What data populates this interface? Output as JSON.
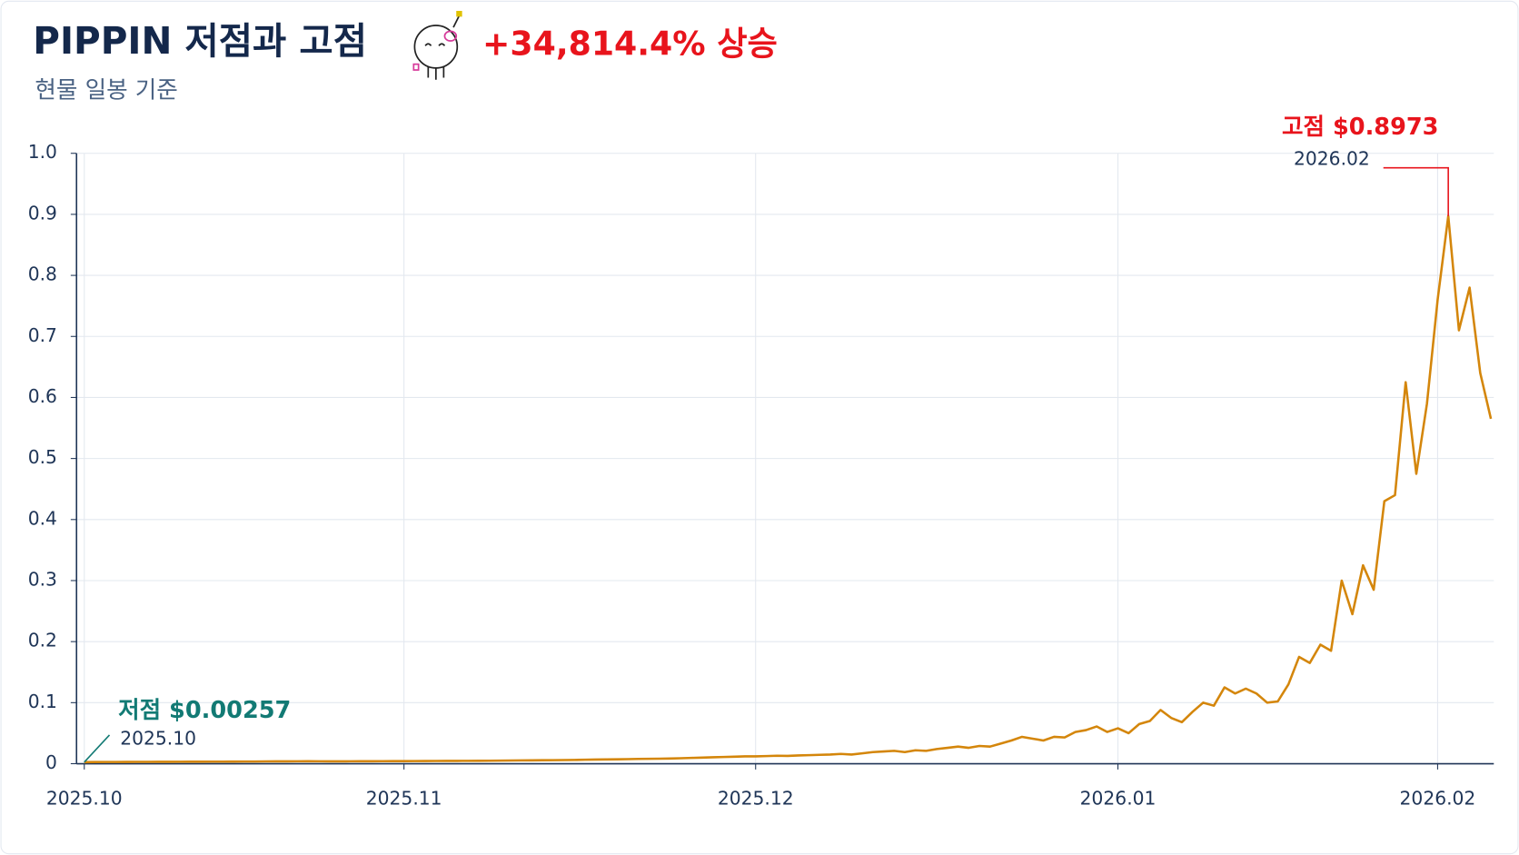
{
  "chart_data": {
    "type": "line",
    "title": "PIPPIN 저점과 고점",
    "headline": "+34,814.4% 상승",
    "subtitle": "현물 일봉 기준",
    "low_annotation": {
      "label": "저점 $0.00257",
      "date": "2025.10"
    },
    "high_annotation": {
      "label": "고점 $0.8973",
      "date": "2026.02"
    },
    "color": "#d4860b",
    "grid": true,
    "ylim": [
      0,
      1
    ],
    "yticks": [
      0,
      0.1,
      0.2,
      0.3,
      0.4,
      0.5,
      0.6,
      0.7,
      0.8,
      0.9,
      {
        "value": 1,
        "label": "1.0"
      }
    ],
    "categories": [
      "2025.10",
      null,
      null,
      null,
      null,
      null,
      null,
      null,
      null,
      null,
      null,
      null,
      null,
      null,
      null,
      null,
      null,
      null,
      null,
      null,
      null,
      null,
      null,
      null,
      null,
      null,
      null,
      null,
      null,
      null,
      "2025.11",
      null,
      null,
      null,
      null,
      null,
      null,
      null,
      null,
      null,
      null,
      null,
      null,
      null,
      null,
      null,
      null,
      null,
      null,
      null,
      null,
      null,
      null,
      null,
      null,
      null,
      null,
      null,
      null,
      null,
      null,
      null,
      null,
      "2025.12",
      null,
      null,
      null,
      null,
      null,
      null,
      null,
      null,
      null,
      null,
      null,
      null,
      null,
      null,
      null,
      null,
      null,
      null,
      null,
      null,
      null,
      null,
      null,
      null,
      null,
      null,
      null,
      null,
      null,
      null,
      null,
      null,
      null,
      "2026.01",
      null,
      null,
      null,
      null,
      null,
      null,
      null,
      null,
      null,
      null,
      null,
      null,
      null,
      null,
      null,
      null,
      null,
      null,
      null,
      null,
      null,
      null,
      null,
      null,
      null,
      null,
      null,
      null,
      null,
      "2026.02",
      null,
      null,
      null,
      null,
      null
    ],
    "values": [
      0.00257,
      0.0027,
      0.0028,
      0.0028,
      0.0029,
      0.003,
      0.003,
      0.0031,
      0.0031,
      0.0032,
      0.0033,
      0.0033,
      0.0034,
      0.0034,
      0.0035,
      0.0036,
      0.0036,
      0.0037,
      0.0038,
      0.0038,
      0.0039,
      0.004,
      0.0039,
      0.0038,
      0.0038,
      0.0039,
      0.004,
      0.004,
      0.0041,
      0.0042,
      0.0042,
      0.0043,
      0.0044,
      0.0045,
      0.0046,
      0.0046,
      0.0047,
      0.0048,
      0.0049,
      0.005,
      0.0052,
      0.0054,
      0.0055,
      0.0057,
      0.0058,
      0.006,
      0.0062,
      0.0065,
      0.0068,
      0.007,
      0.0072,
      0.0075,
      0.0078,
      0.008,
      0.0082,
      0.0085,
      0.009,
      0.0095,
      0.01,
      0.0105,
      0.011,
      0.0115,
      0.012,
      0.012,
      0.0125,
      0.013,
      0.0128,
      0.0135,
      0.014,
      0.0145,
      0.015,
      0.016,
      0.015,
      0.017,
      0.019,
      0.02,
      0.021,
      0.019,
      0.022,
      0.021,
      0.024,
      0.026,
      0.028,
      0.026,
      0.029,
      0.028,
      0.033,
      0.038,
      0.044,
      0.041,
      0.038,
      0.044,
      0.043,
      0.052,
      0.055,
      0.061,
      0.052,
      0.058,
      0.05,
      0.065,
      0.07,
      0.088,
      0.075,
      0.068,
      0.085,
      0.1,
      0.095,
      0.125,
      0.115,
      0.123,
      0.115,
      0.1,
      0.102,
      0.13,
      0.175,
      0.165,
      0.195,
      0.185,
      0.3,
      0.245,
      0.325,
      0.285,
      0.43,
      0.44,
      0.625,
      0.475,
      0.59,
      0.76,
      0.8973,
      0.71,
      0.78,
      0.64,
      0.565
    ]
  }
}
